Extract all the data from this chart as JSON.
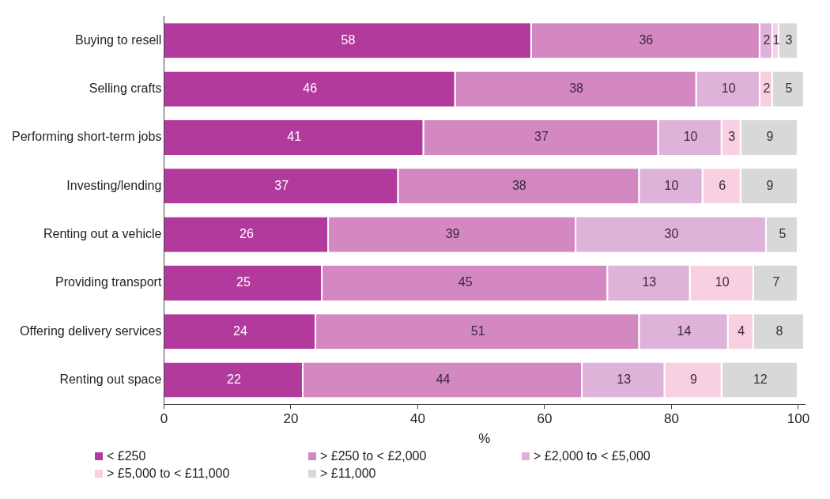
{
  "chart_data": {
    "type": "bar",
    "orientation": "horizontal",
    "stacked": true,
    "xlabel": "%",
    "categories": [
      "Buying to resell",
      "Selling crafts",
      "Performing short-term jobs",
      "Investing/lending",
      "Renting out a vehicle",
      "Providing transport",
      "Offering delivery services",
      "Renting out space"
    ],
    "series": [
      {
        "name": "< £250",
        "color": "#b23a9c",
        "values": [
          58,
          46,
          41,
          37,
          26,
          25,
          24,
          22
        ]
      },
      {
        "name": "> £250 to < £2,000",
        "color": "#d488c2",
        "values": [
          36,
          38,
          37,
          38,
          39,
          45,
          51,
          44
        ]
      },
      {
        "name": "> £2,000 to < £5,000",
        "color": "#deb2d9",
        "values": [
          2,
          10,
          10,
          10,
          30,
          13,
          14,
          13
        ]
      },
      {
        "name": "> £5,000 to < £11,000",
        "color": "#f9d0e2",
        "values": [
          1,
          2,
          3,
          6,
          null,
          10,
          4,
          9
        ]
      },
      {
        "name": "> £11,000",
        "color": "#d8d8d8",
        "values": [
          3,
          5,
          9,
          9,
          5,
          7,
          8,
          12
        ]
      }
    ],
    "xlim": [
      0,
      101
    ],
    "xticks": [
      0,
      20,
      40,
      60,
      80,
      100
    ],
    "grid": false,
    "legend": "bottom",
    "data_labels": true
  }
}
